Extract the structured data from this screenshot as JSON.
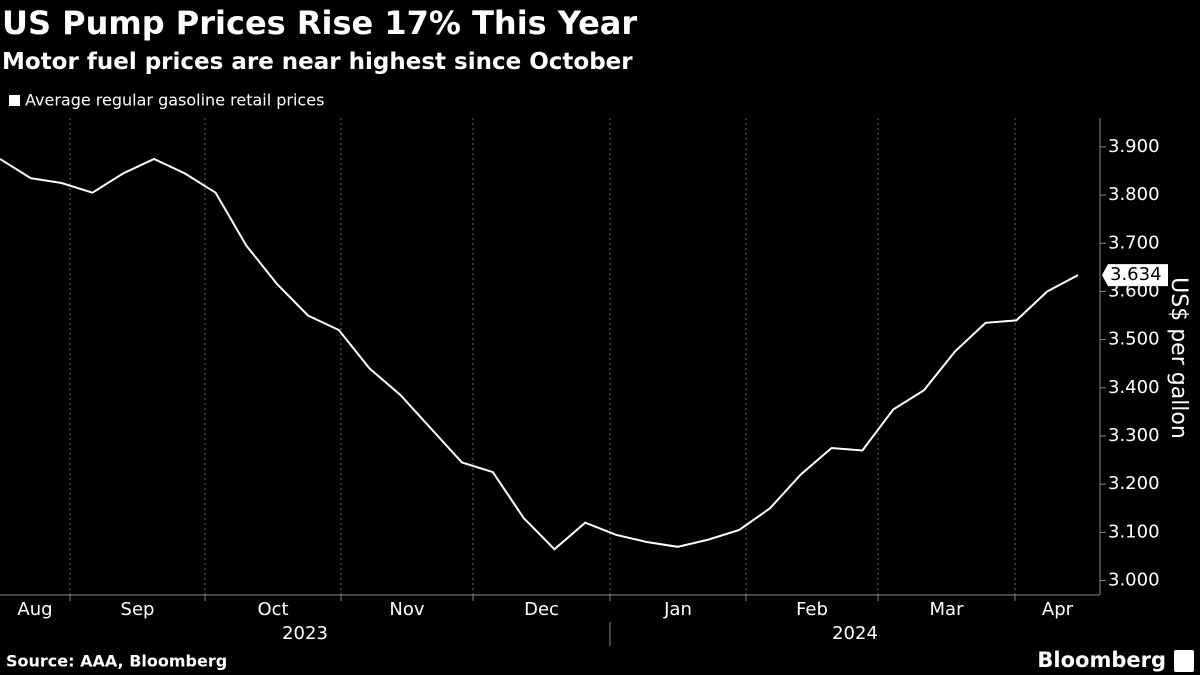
{
  "chart_data": {
    "type": "line",
    "title": "US Pump Prices Rise 17% This Year",
    "subtitle": "Motor fuel prices are near highest since October",
    "y_axis_label": "US$ per gallon",
    "source": "Source: AAA, Bloomberg",
    "brand": "Bloomberg",
    "months": [
      "Aug",
      "Sep",
      "Oct",
      "Nov",
      "Dec",
      "Jan",
      "Feb",
      "Mar",
      "Apr"
    ],
    "years": [
      "2023",
      "2024"
    ],
    "series": [
      {
        "name": "Average regular gasoline retail prices",
        "color": "#ffffff",
        "values": [
          3.875,
          3.835,
          3.825,
          3.805,
          3.845,
          3.875,
          3.845,
          3.805,
          3.695,
          3.615,
          3.55,
          3.52,
          3.44,
          3.385,
          3.315,
          3.245,
          3.225,
          3.13,
          3.065,
          3.12,
          3.095,
          3.08,
          3.07,
          3.085,
          3.105,
          3.15,
          3.22,
          3.275,
          3.27,
          3.355,
          3.395,
          3.475,
          3.535,
          3.54,
          3.6,
          3.634
        ]
      }
    ],
    "ylim": [
      2.97,
      3.96
    ],
    "yticks": [
      {
        "value": 3,
        "label": "3.000"
      },
      {
        "value": 3.1,
        "label": "3.100"
      },
      {
        "value": 3.2,
        "label": "3.200"
      },
      {
        "value": 3.3,
        "label": "3.300"
      },
      {
        "value": 3.4,
        "label": "3.400"
      },
      {
        "value": 3.5,
        "label": "3.500"
      },
      {
        "value": 3.6,
        "label": "3.600"
      },
      {
        "value": 3.7,
        "label": "3.700"
      },
      {
        "value": 3.8,
        "label": "3.800"
      },
      {
        "value": 3.9,
        "label": "3.900"
      }
    ],
    "legend": "top-left"
  }
}
